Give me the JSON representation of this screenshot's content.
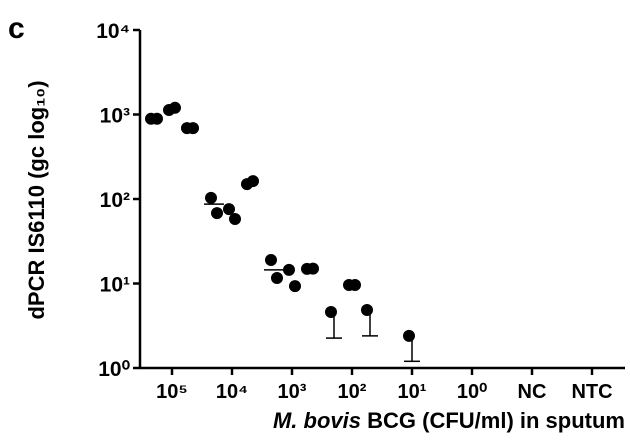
{
  "chart_data": {
    "type": "scatter",
    "panel_label": "c",
    "y_label": "dPCR IS6110 (gc log₁₀)",
    "x_label_italic": "M. bovis",
    "x_label": "BCG (CFU/ml) in sputum",
    "categories": [
      "10⁵",
      "10⁴",
      "10³",
      "10²",
      "10¹",
      "10⁰",
      "NC",
      "NTC"
    ],
    "log_y": true,
    "ylim": [
      1,
      10000
    ],
    "yticks": [
      {
        "value": 1,
        "label": "10⁰"
      },
      {
        "value": 10,
        "label": "10¹"
      },
      {
        "value": 100,
        "label": "10²"
      },
      {
        "value": 1000,
        "label": "10³"
      },
      {
        "value": 10000,
        "label": "10⁴"
      }
    ],
    "color": "#000000",
    "series": [
      {
        "values": [
          890,
          103,
          19,
          4.6,
          null,
          null,
          null,
          null
        ],
        "values_2": [
          890,
          68,
          11.6,
          null,
          null,
          null,
          null,
          null
        ],
        "error_low": [
          null,
          null,
          null,
          2.26,
          null,
          null,
          null,
          null
        ]
      },
      {
        "values": [
          1130,
          76,
          14.5,
          9.6,
          2.4,
          null,
          null,
          null
        ],
        "values_2": [
          1200,
          58,
          9.3,
          9.6,
          null,
          null,
          null,
          null
        ],
        "error_low": [
          null,
          null,
          null,
          null,
          1.2,
          null,
          null,
          null
        ]
      },
      {
        "values": [
          690,
          150,
          14.9,
          4.85,
          null,
          null,
          null,
          null
        ],
        "values_2": [
          690,
          163,
          15,
          null,
          null,
          null,
          null,
          null
        ],
        "error_low": [
          null,
          null,
          null,
          2.4,
          null,
          null,
          null,
          null
        ]
      }
    ],
    "means": [
      null,
      87,
      14.5,
      null,
      null,
      null,
      null,
      null
    ]
  }
}
